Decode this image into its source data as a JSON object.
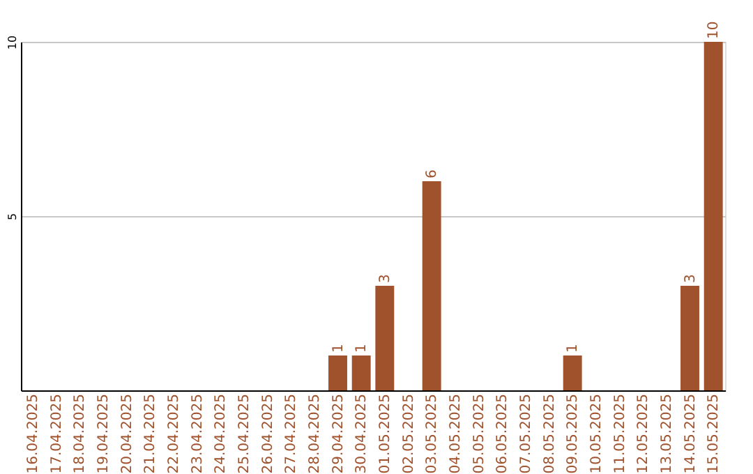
{
  "chart_data": {
    "type": "bar",
    "categories": [
      "16.04.2025",
      "17.04.2025",
      "18.04.2025",
      "19.04.2025",
      "20.04.2025",
      "21.04.2025",
      "22.04.2025",
      "23.04.2025",
      "24.04.2025",
      "25.04.2025",
      "26.04.2025",
      "27.04.2025",
      "28.04.2025",
      "29.04.2025",
      "30.04.2025",
      "01.05.2025",
      "02.05.2025",
      "03.05.2025",
      "04.05.2025",
      "05.05.2025",
      "06.05.2025",
      "07.05.2025",
      "08.05.2025",
      "09.05.2025",
      "10.05.2025",
      "11.05.2025",
      "12.05.2025",
      "13.05.2025",
      "14.05.2025",
      "15.05.2025"
    ],
    "values": [
      0,
      0,
      0,
      0,
      0,
      0,
      0,
      0,
      0,
      0,
      0,
      0,
      0,
      1,
      1,
      3,
      0,
      6,
      0,
      0,
      0,
      0,
      0,
      1,
      0,
      0,
      0,
      0,
      3,
      10
    ],
    "value_labels": [
      null,
      null,
      null,
      null,
      null,
      null,
      null,
      null,
      null,
      null,
      null,
      null,
      null,
      "1",
      "1",
      "3",
      null,
      "6",
      null,
      null,
      null,
      null,
      null,
      "1",
      null,
      null,
      null,
      null,
      "3",
      "10"
    ],
    "color": "#a0522d",
    "ylim": [
      0,
      10
    ],
    "yticks": [
      5,
      10
    ],
    "grid": "y"
  }
}
